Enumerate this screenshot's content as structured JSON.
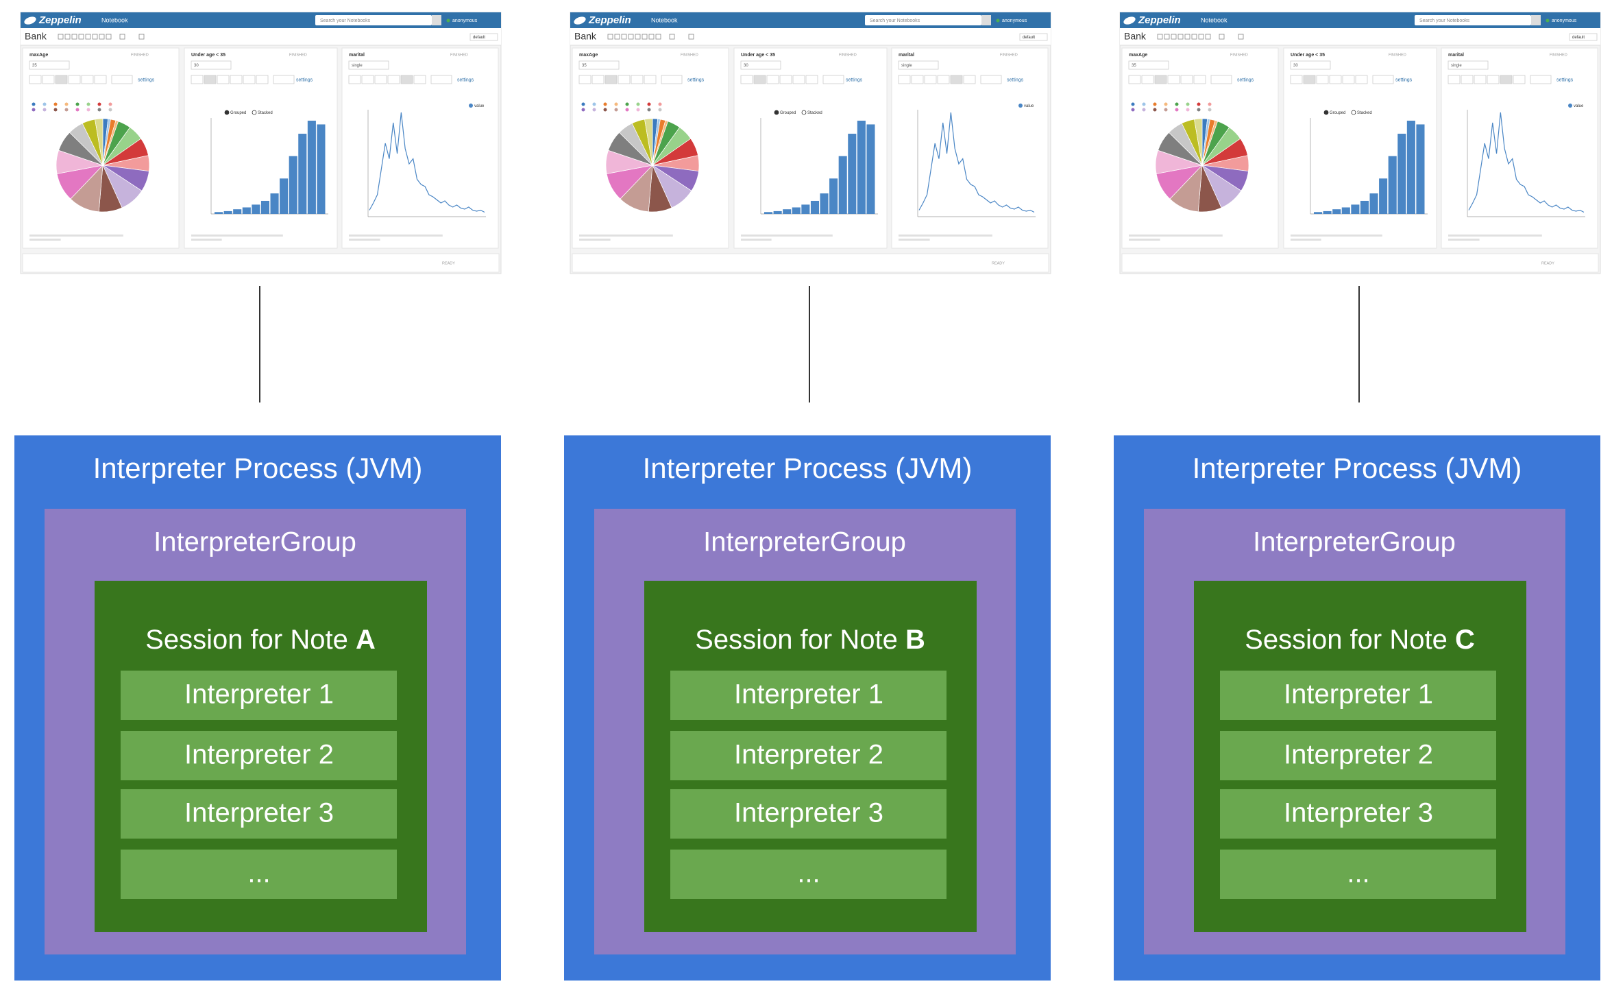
{
  "columns": [
    {
      "screenshot": {
        "app": "Zeppelin",
        "menu": "Notebook",
        "search": "Search your Notebooks",
        "user": "anonymous",
        "note": "Bank",
        "interpreter": "default",
        "paragraphs": [
          {
            "title": "maxAge",
            "status": "FINISHED",
            "input": "35",
            "settings": "settings"
          },
          {
            "title": "Under age < 35",
            "status": "FINISHED",
            "input": "30",
            "settings": "settings",
            "legend": [
              "Grouped",
              "Stacked"
            ]
          },
          {
            "title": "marital",
            "status": "FINISHED",
            "input": "single",
            "settings": "settings",
            "legend": [
              "value"
            ]
          }
        ],
        "status": "READY"
      },
      "process": {
        "title": "Interpreter Process (JVM)",
        "group": "InterpreterGroup",
        "session": {
          "prefix": "Session for Note",
          "note": "A"
        },
        "interpreters": [
          "Interpreter 1",
          "Interpreter 2",
          "Interpreter 3",
          "..."
        ]
      }
    },
    {
      "screenshot": {
        "app": "Zeppelin",
        "menu": "Notebook",
        "search": "Search your Notebooks",
        "user": "anonymous",
        "note": "Bank",
        "interpreter": "default",
        "paragraphs": [
          {
            "title": "maxAge",
            "status": "FINISHED",
            "input": "35",
            "settings": "settings"
          },
          {
            "title": "Under age < 35",
            "status": "FINISHED",
            "input": "30",
            "settings": "settings",
            "legend": [
              "Grouped",
              "Stacked"
            ]
          },
          {
            "title": "marital",
            "status": "FINISHED",
            "input": "single",
            "settings": "settings",
            "legend": [
              "value"
            ]
          }
        ],
        "status": "READY"
      },
      "process": {
        "title": "Interpreter Process (JVM)",
        "group": "InterpreterGroup",
        "session": {
          "prefix": "Session for Note",
          "note": "B"
        },
        "interpreters": [
          "Interpreter 1",
          "Interpreter 2",
          "Interpreter 3",
          "..."
        ]
      }
    },
    {
      "screenshot": {
        "app": "Zeppelin",
        "menu": "Notebook",
        "search": "Search your Notebooks",
        "user": "anonymous",
        "note": "Bank",
        "interpreter": "default",
        "paragraphs": [
          {
            "title": "maxAge",
            "status": "FINISHED",
            "input": "35",
            "settings": "settings"
          },
          {
            "title": "Under age < 35",
            "status": "FINISHED",
            "input": "30",
            "settings": "settings",
            "legend": [
              "Grouped",
              "Stacked"
            ]
          },
          {
            "title": "marital",
            "status": "FINISHED",
            "input": "single",
            "settings": "settings",
            "legend": [
              "value"
            ]
          }
        ],
        "status": "READY"
      },
      "process": {
        "title": "Interpreter Process (JVM)",
        "group": "InterpreterGroup",
        "session": {
          "prefix": "Session for Note",
          "note": "C"
        },
        "interpreters": [
          "Interpreter 1",
          "Interpreter 2",
          "Interpreter 3",
          "..."
        ]
      }
    }
  ]
}
